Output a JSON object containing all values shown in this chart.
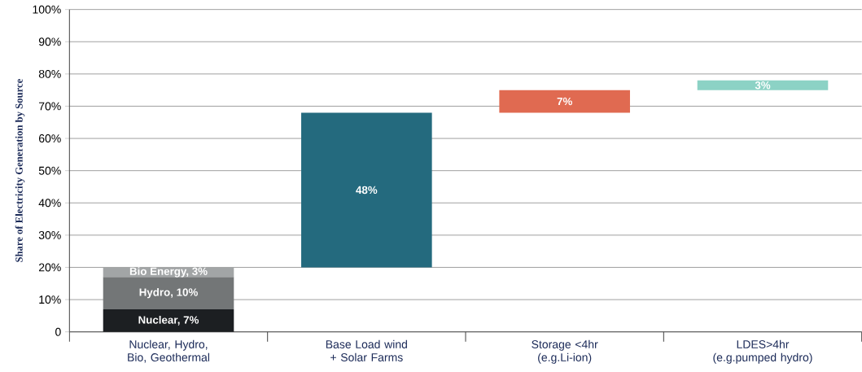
{
  "chart_data": {
    "type": "bar",
    "stacked": true,
    "ylabel": "Share of Electricity Generation by Source",
    "categories": [
      "Nuclear, Hydro, Bio, Geothermal",
      "Base Load wind + Solar Farms",
      "Storage <4hr (e.g.Li-ion)",
      "LDES>4hr (e.g.pumped hydro)"
    ],
    "series": [
      {
        "color": "#1c1f22",
        "values": [
          7,
          null,
          null,
          null
        ],
        "value_labels": [
          "Nuclear, 7%",
          null,
          null,
          null
        ]
      },
      {
        "color": "#737677",
        "values": [
          10,
          null,
          null,
          null
        ],
        "value_labels": [
          "Hydro, 10%",
          null,
          null,
          null
        ]
      },
      {
        "color": "#a2a5a6",
        "values": [
          3,
          null,
          null,
          null
        ],
        "value_labels": [
          "Bio Energy, 3%",
          null,
          null,
          null
        ]
      },
      {
        "color": "#246a7e",
        "values": [
          null,
          48,
          null,
          null
        ],
        "base": [
          null,
          20,
          null,
          null
        ],
        "value_labels": [
          null,
          "48%",
          null,
          null
        ]
      },
      {
        "color": "#e06a51",
        "values": [
          null,
          null,
          7,
          null
        ],
        "base": [
          null,
          null,
          68,
          null
        ],
        "value_labels": [
          null,
          null,
          "7%",
          null
        ]
      },
      {
        "color": "#8cd2c5",
        "values": [
          null,
          null,
          null,
          3
        ],
        "base": [
          null,
          null,
          null,
          75
        ],
        "value_labels": [
          null,
          null,
          null,
          "3%"
        ]
      }
    ],
    "ylim": [
      0,
      100
    ],
    "yticks": [
      {
        "value": 0,
        "label": "0"
      },
      {
        "value": 10,
        "label": "10%"
      },
      {
        "value": 20,
        "label": "20%"
      },
      {
        "value": 30,
        "label": "30%"
      },
      {
        "value": 40,
        "label": "40%"
      },
      {
        "value": 50,
        "label": "50%"
      },
      {
        "value": 60,
        "label": "60%"
      },
      {
        "value": 70,
        "label": "70%"
      },
      {
        "value": 80,
        "label": "80%"
      },
      {
        "value": 90,
        "label": "90%"
      },
      {
        "value": 100,
        "label": "100%"
      }
    ],
    "grid": "y"
  }
}
